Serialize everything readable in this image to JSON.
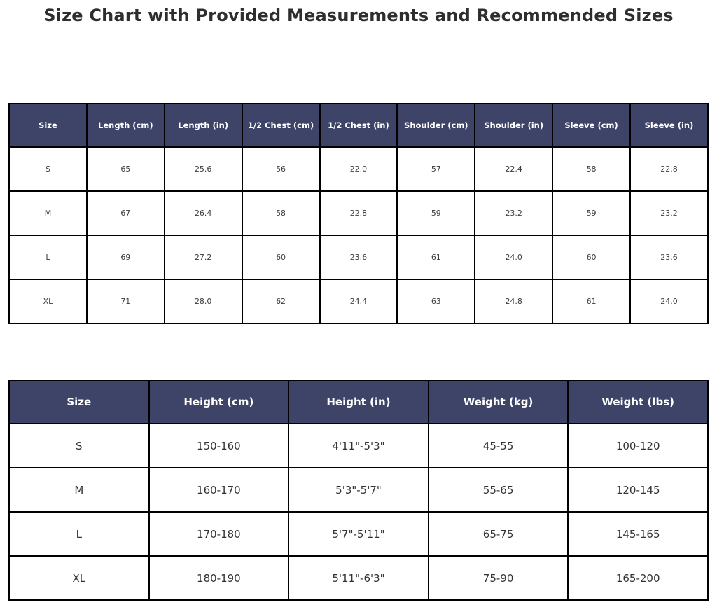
{
  "title": "Size Chart with Provided Measurements and Recommended Sizes",
  "colors": {
    "header_bg": "#3e4468",
    "header_text": "#ffffff",
    "cell_text": "#3c3c3c",
    "border": "#000000",
    "background": "#ffffff",
    "title_text": "#2e2e2e"
  },
  "measurements_table": {
    "headers": [
      "Size",
      "Length (cm)",
      "Length (in)",
      "1/2 Chest (cm)",
      "1/2 Chest (in)",
      "Shoulder (cm)",
      "Shoulder (in)",
      "Sleeve (cm)",
      "Sleeve (in)"
    ],
    "rows": [
      [
        "S",
        "65",
        "25.6",
        "56",
        "22.0",
        "57",
        "22.4",
        "58",
        "22.8"
      ],
      [
        "M",
        "67",
        "26.4",
        "58",
        "22.8",
        "59",
        "23.2",
        "59",
        "23.2"
      ],
      [
        "L",
        "69",
        "27.2",
        "60",
        "23.6",
        "61",
        "24.0",
        "60",
        "23.6"
      ],
      [
        "XL",
        "71",
        "28.0",
        "62",
        "24.4",
        "63",
        "24.8",
        "61",
        "24.0"
      ]
    ]
  },
  "recommended_table": {
    "headers": [
      "Size",
      "Height (cm)",
      "Height (in)",
      "Weight (kg)",
      "Weight (lbs)"
    ],
    "rows": [
      [
        "S",
        "150-160",
        "4'11\"-5'3\"",
        "45-55",
        "100-120"
      ],
      [
        "M",
        "160-170",
        "5'3\"-5'7\"",
        "55-65",
        "120-145"
      ],
      [
        "L",
        "170-180",
        "5'7\"-5'11\"",
        "65-75",
        "145-165"
      ],
      [
        "XL",
        "180-190",
        "5'11\"-6'3\"",
        "75-90",
        "165-200"
      ]
    ]
  }
}
